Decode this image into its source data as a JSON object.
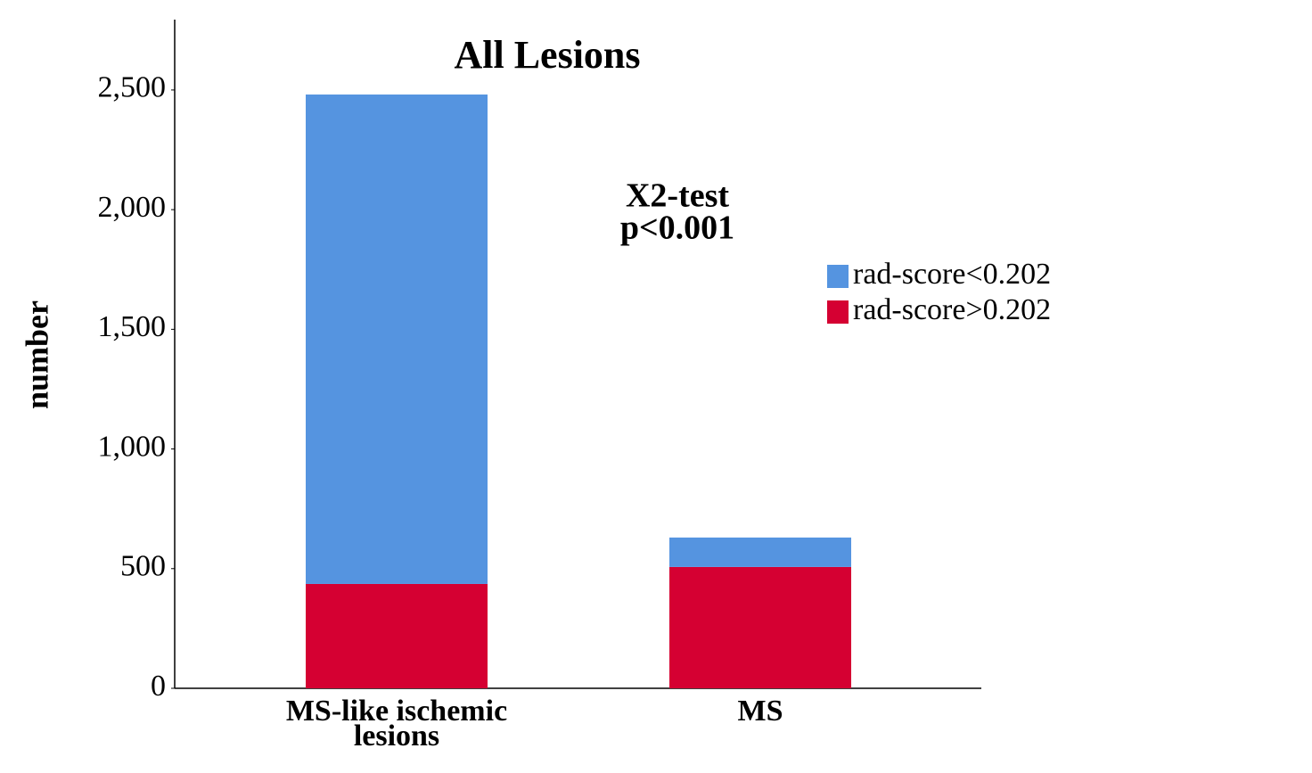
{
  "chart_data": {
    "type": "stacked_bar",
    "title": "All Lesions",
    "annotations": [
      "X2-test",
      "p<0.001"
    ],
    "y_label": "number",
    "categories": [
      "MS-like ischemic lesions",
      "MS"
    ],
    "series": [
      {
        "name": "rad-score<0.202",
        "color": "#5594e0",
        "values": [
          2045,
          123
        ]
      },
      {
        "name": "rad-score>0.202",
        "color": "#d50032",
        "values": [
          436,
          507
        ]
      }
    ],
    "ylim": [
      0,
      2794
    ],
    "yticks": [
      0,
      500,
      {
        "value": 1000,
        "label": "1,000"
      },
      {
        "value": 1500,
        "label": "1,500"
      },
      {
        "value": 2000,
        "label": "2,000"
      },
      {
        "value": 2500,
        "label": "2,500"
      }
    ],
    "grid": false,
    "legend": "right"
  }
}
